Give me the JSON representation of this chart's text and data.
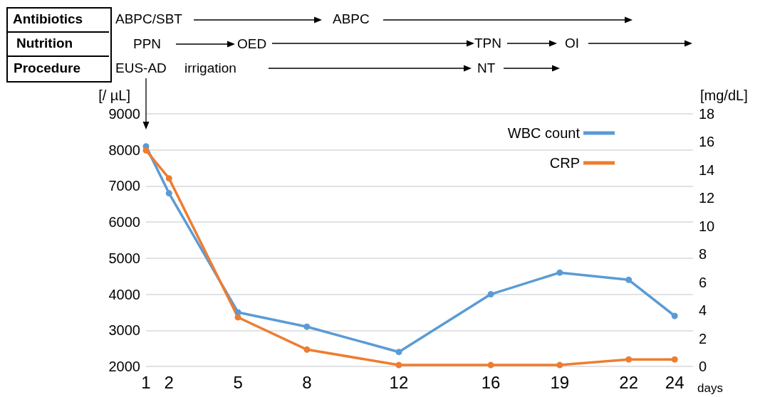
{
  "chart_data": {
    "type": "line",
    "x": [
      1,
      2,
      5,
      8,
      12,
      16,
      19,
      22,
      24
    ],
    "xlim": [
      1,
      24.8
    ],
    "xticks": [
      1,
      2,
      5,
      8,
      12,
      16,
      19,
      22,
      24
    ],
    "xlabel": "days",
    "ylabel": "[/ µL]",
    "ylim": [
      2000,
      9000
    ],
    "yticks": [
      2000,
      3000,
      4000,
      5000,
      6000,
      7000,
      8000,
      9000
    ],
    "y2label": "[mg/dL]",
    "y2lim": [
      0,
      18
    ],
    "y2ticks": [
      0,
      2,
      4,
      6,
      8,
      10,
      12,
      14,
      16,
      18
    ],
    "series": [
      {
        "name": "WBC count",
        "color": "#5b9bd5",
        "values": [
          8100,
          6800,
          3500,
          3100,
          2400,
          4000,
          4600,
          4400,
          3400
        ]
      },
      {
        "name": "CRP",
        "color": "#ed7d31",
        "axis": "y2",
        "values": [
          15.4,
          13.4,
          3.5,
          1.2,
          0.1,
          0.1,
          0.1,
          0.5,
          0.5
        ]
      }
    ],
    "grid": "y",
    "legend": "top right",
    "marker": "circle",
    "line_style": "solid",
    "annotations": [
      "Antibiotics",
      "ABPC/SBT",
      "ABPC",
      "Nutrition",
      "PPN",
      "OED",
      "TPN",
      "OI",
      "Procedure",
      "EUS-AD",
      "irrigation",
      "NT"
    ]
  }
}
